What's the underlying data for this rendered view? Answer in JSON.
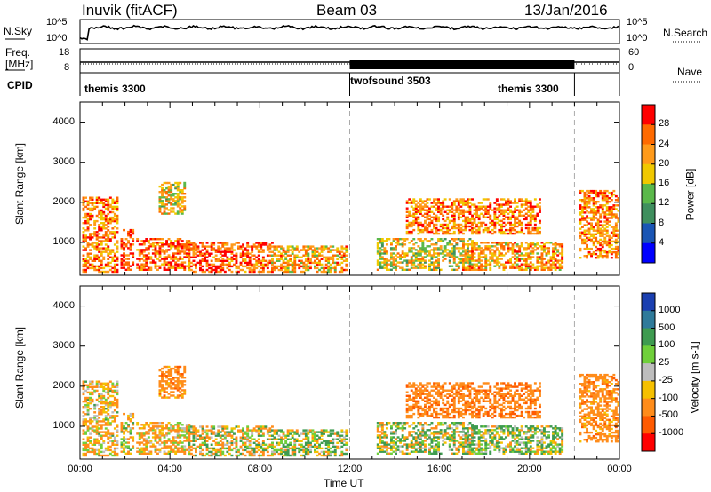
{
  "header": {
    "station": "Inuvik (fitACF)",
    "beam": "Beam 03",
    "date": "13/Jan/2016"
  },
  "nsky_panel": {
    "left_label": "N.Sky",
    "right_label": "N.Search",
    "left_ticks": [
      "10^5",
      "10^0"
    ],
    "right_ticks": [
      "10^5",
      "10^0"
    ]
  },
  "freq_panel": {
    "left_label_1": "Freq.",
    "left_label_2": "[MHz]",
    "right_label": "Nave",
    "left_ticks": [
      "18",
      "8"
    ],
    "right_ticks": [
      "60",
      "0"
    ]
  },
  "cpid_panel": {
    "label": "CPID",
    "modes": [
      {
        "name": "themis 3300",
        "start_hour": 0,
        "end_hour": 12
      },
      {
        "name": "twofsound 3503",
        "start_hour": 12,
        "end_hour": 22
      },
      {
        "name": "themis 3300",
        "start_hour": 22,
        "end_hour": 24
      }
    ]
  },
  "power_panel": {
    "ylabel": "Slant Range [km]",
    "cbar_label": "Power [dB]",
    "cbar_ticks": [
      "28",
      "24",
      "20",
      "16",
      "12",
      "8",
      "4"
    ],
    "cbar_colors": [
      "#ff0000",
      "#ff6a00",
      "#ff9a1a",
      "#f0c800",
      "#5ab84a",
      "#3f8f5e",
      "#1a55b4",
      "#0000ff"
    ]
  },
  "velocity_panel": {
    "ylabel": "Slant Range [km]",
    "cbar_label": "Velocity [m s-1]",
    "cbar_ticks": [
      "1000",
      "500",
      "100",
      "25",
      "-25",
      "-100",
      "-500",
      "-1000"
    ],
    "cbar_colors": [
      "#1a3fb0",
      "#2f7a9a",
      "#3e9b50",
      "#6fcf3a",
      "#bdbdbd",
      "#f5c000",
      "#ff8c1a",
      "#ff5a00",
      "#ff0000"
    ]
  },
  "axes": {
    "y_ticks": [
      "1000",
      "2000",
      "3000",
      "4000"
    ],
    "x_ticks": [
      "00:00",
      "04:00",
      "08:00",
      "12:00",
      "16:00",
      "20:00",
      "00:00"
    ],
    "xlabel": "Time UT"
  },
  "chart_data": {
    "type": "heatmap",
    "title": "Inuvik (fitACF)",
    "xlabel": "Time UT",
    "ylabel": "Slant Range [km]",
    "xlim_hours": [
      0,
      24
    ],
    "ylim_km": [
      180,
      4500
    ],
    "power_scale_db": [
      0,
      30
    ],
    "velocity_scale_ms": [
      -1000,
      1000
    ],
    "echo_regions": [
      {
        "t0": 0.1,
        "t1": 1.7,
        "r0": 250,
        "r1": 2100,
        "power": 22,
        "velocity": -120
      },
      {
        "t0": 1.8,
        "t1": 2.4,
        "r0": 300,
        "r1": 1300,
        "power": 26,
        "velocity": -80
      },
      {
        "t0": 2.5,
        "t1": 4.8,
        "r0": 300,
        "r1": 1100,
        "power": 24,
        "velocity": -150
      },
      {
        "t0": 3.5,
        "t1": 4.6,
        "r0": 1700,
        "r1": 2500,
        "power": 18,
        "velocity": -300
      },
      {
        "t0": 4.8,
        "t1": 8.5,
        "r0": 250,
        "r1": 1000,
        "power": 25,
        "velocity": -60
      },
      {
        "t0": 8.5,
        "t1": 11.8,
        "r0": 250,
        "r1": 900,
        "power": 20,
        "velocity": 60
      },
      {
        "t0": 13.2,
        "t1": 17.5,
        "r0": 300,
        "r1": 1100,
        "power": 17,
        "velocity": 40
      },
      {
        "t0": 14.5,
        "t1": 20.5,
        "r0": 1200,
        "r1": 2100,
        "power": 22,
        "velocity": -400
      },
      {
        "t0": 17.0,
        "t1": 21.5,
        "r0": 300,
        "r1": 1000,
        "power": 21,
        "velocity": 80
      },
      {
        "t0": 22.2,
        "t1": 24.0,
        "r0": 600,
        "r1": 2300,
        "power": 22,
        "velocity": -300
      }
    ]
  }
}
